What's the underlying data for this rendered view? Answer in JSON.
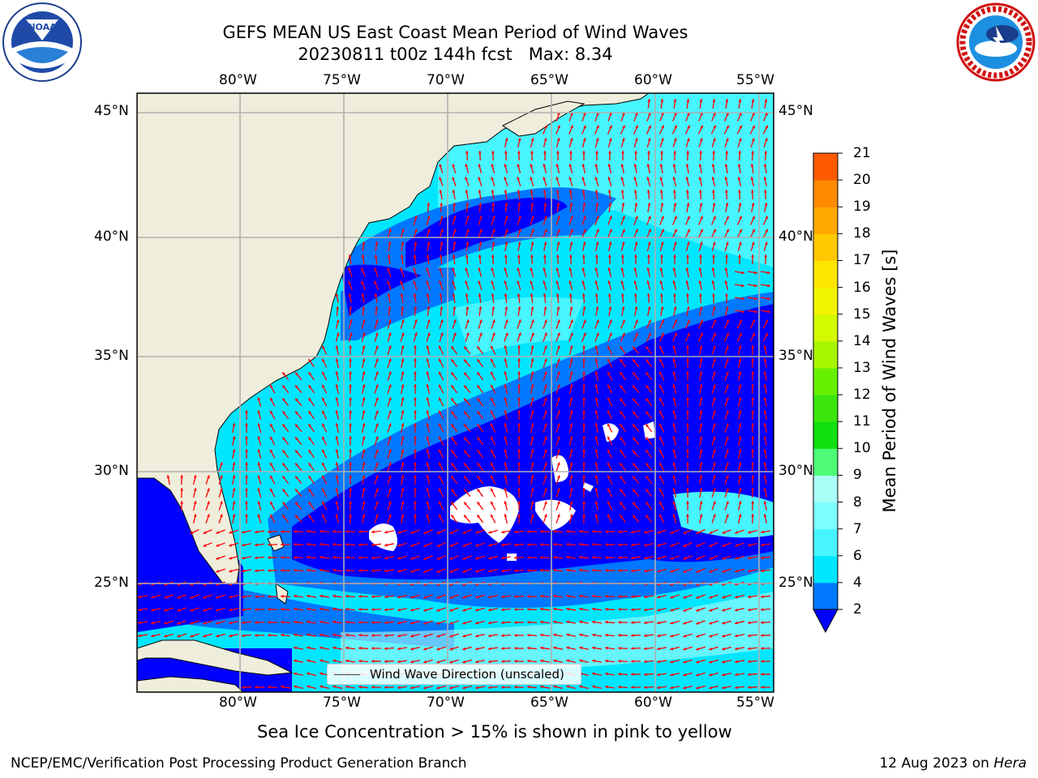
{
  "header": {
    "title": "GEFS MEAN US East Coast Mean Period of Wind Waves",
    "subtitle": "20230811 t00z 144h fcst   Max: 8.34"
  },
  "map": {
    "lon_labels_top": [
      "80°W",
      "75°W",
      "70°W",
      "65°W",
      "60°W",
      "55°W"
    ],
    "lon_labels_bottom": [
      "80°W",
      "75°W",
      "70°W",
      "65°W",
      "60°W",
      "55°W"
    ],
    "lat_labels_left": [
      "45°N",
      "40°N",
      "35°N",
      "30°N",
      "25°N"
    ],
    "lat_labels_right": [
      "45°N",
      "40°N",
      "35°N",
      "30°N",
      "25°N"
    ],
    "land_color": "#efeddb",
    "grid_color": "#b0b0b0",
    "arrow_color": "#ff0000"
  },
  "colorbar": {
    "title": "Mean Period of Wind Waves [s]",
    "ticks": [
      "2",
      "4",
      "6",
      "7",
      "8",
      "9",
      "10",
      "11",
      "12",
      "13",
      "14",
      "15",
      "16",
      "17",
      "18",
      "19",
      "20",
      "21"
    ],
    "colors": [
      "#0078ff",
      "#00e6ff",
      "#47f5ff",
      "#7dfdff",
      "#a8fff8",
      "#4dfb75",
      "#10e010",
      "#3ae60e",
      "#66f000",
      "#a8f500",
      "#d4fa00",
      "#f2f500",
      "#ffe600",
      "#ffc800",
      "#ffa800",
      "#ff8a00",
      "#ff5a00",
      "#ff3000",
      "#ff0000"
    ],
    "under_color": "#0000ff"
  },
  "legend": {
    "label": "Wind Wave Direction (unscaled)"
  },
  "notes": {
    "sea_ice": "Sea Ice Concentration > 15% is shown in pink to yellow",
    "footer_left": "NCEP/EMC/Verification Post Processing Product Generation Branch",
    "footer_date": "12 Aug 2023 on",
    "footer_host": "Hera"
  },
  "logos": {
    "left": "noaa-logo",
    "right": "nws-logo",
    "left_text": "NOAA"
  }
}
